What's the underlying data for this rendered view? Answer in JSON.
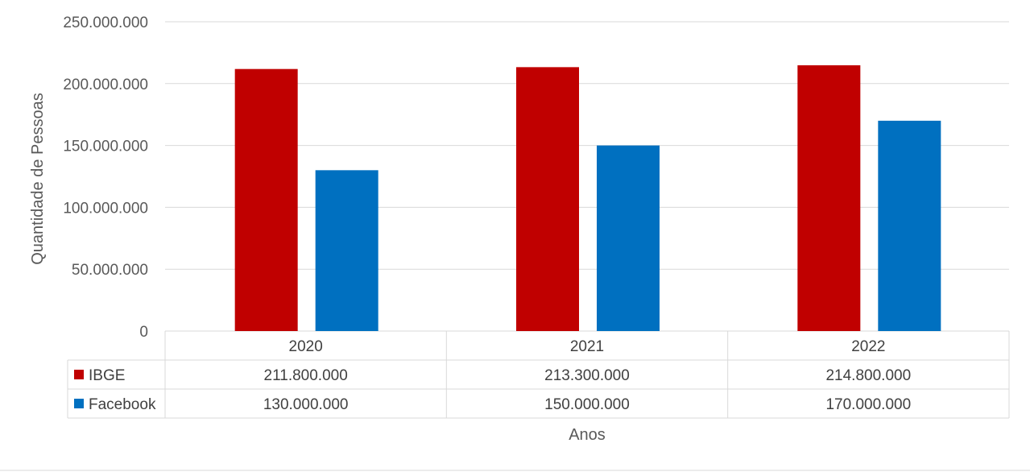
{
  "chart_data": {
    "type": "bar",
    "categories": [
      "2020",
      "2021",
      "2022"
    ],
    "series": [
      {
        "name": "IBGE",
        "color": "#C00000",
        "values": [
          211800000,
          213300000,
          214800000
        ],
        "labels": [
          "211.800.000",
          "213.300.000",
          "214.800.000"
        ]
      },
      {
        "name": "Facebook",
        "color": "#0070C0",
        "values": [
          130000000,
          150000000,
          170000000
        ],
        "labels": [
          "130.000.000",
          "150.000.000",
          "170.000.000"
        ]
      }
    ],
    "ylabel": "Quantidade de Pessoas",
    "xlabel": "Anos",
    "ylim": [
      0,
      250000000
    ],
    "yticks": [
      0,
      50000000,
      100000000,
      150000000,
      200000000,
      250000000
    ],
    "ytick_labels": [
      "0",
      "50.000.000",
      "100.000.000",
      "150.000.000",
      "200.000.000",
      "250.000.000"
    ],
    "grid": true,
    "legend": "data table below plot"
  }
}
